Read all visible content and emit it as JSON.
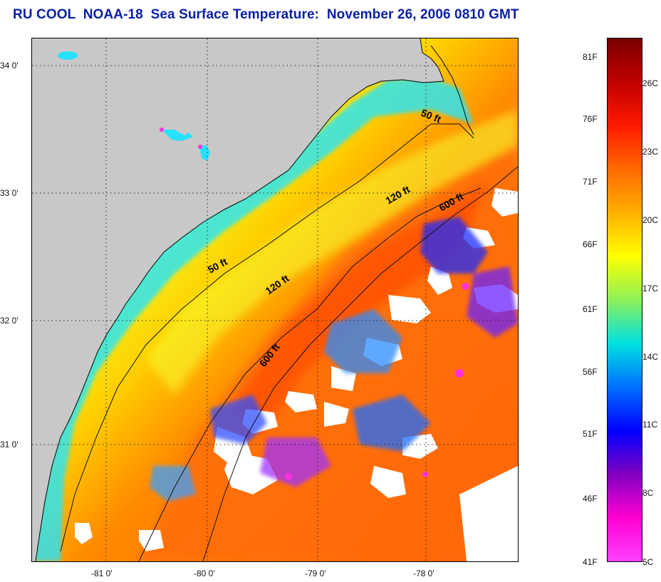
{
  "title": "RU COOL  NOAA-18  Sea Surface Temperature:  November 26, 2006 0810 GMT",
  "latitude_ticks": [
    "34 0'",
    "33 0'",
    "32 0'",
    "31 0'"
  ],
  "longitude_ticks": [
    "-81 0'",
    "-80 0'",
    "-79 0'",
    "-78 0'"
  ],
  "isobath_labels": [
    "50 ft",
    "120 ft",
    "600 ft",
    "50 ft",
    "120 ft",
    "600 ft"
  ],
  "colorbar": {
    "fahrenheit_labels": [
      "81F",
      "76F",
      "71F",
      "66F",
      "61F",
      "56F",
      "51F",
      "46F",
      "41F"
    ],
    "celsius_labels": [
      "26C",
      "23C",
      "20C",
      "17C",
      "14C",
      "11C",
      "8C",
      "5C"
    ],
    "colors": [
      "#7a0000",
      "#c00000",
      "#ff1a00",
      "#ff6a00",
      "#ffb000",
      "#ffff00",
      "#8cf15a",
      "#00e0e0",
      "#0070ff",
      "#0000ff",
      "#8000c0",
      "#ff00d0",
      "#ff40ff"
    ]
  },
  "colors": {
    "land": "#c8c8c8",
    "cloud": "#ffffff",
    "title": "#0b1ea8",
    "coastline": "#000000"
  }
}
